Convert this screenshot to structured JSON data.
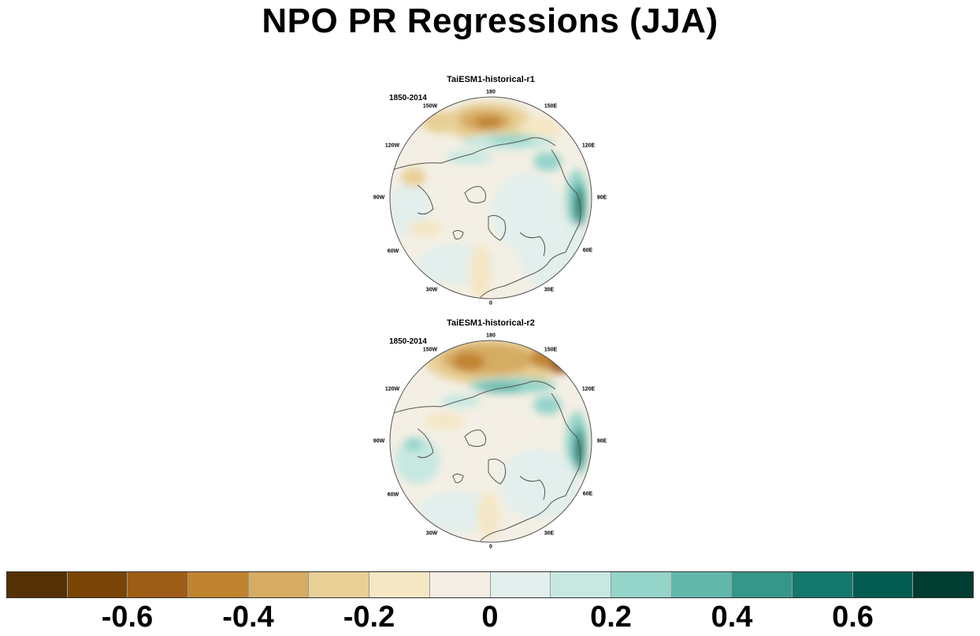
{
  "title": "NPO PR Regressions (JJA)",
  "panels": [
    {
      "title": "TaiESM1-historical-r1",
      "period": "1850-2014"
    },
    {
      "title": "TaiESM1-historical-r2",
      "period": "1850-2014"
    }
  ],
  "longitude_labels": {
    "lon180": "180",
    "lon150e": "150E",
    "lon120e": "120E",
    "lon90e": "90E",
    "lon60e": "60E",
    "lon30e": "30E",
    "lon0": "0",
    "lon30w": "30W",
    "lon60w": "60W",
    "lon90w": "90W",
    "lon120w": "120W",
    "lon150w": "150W"
  },
  "colorbar": {
    "colors": [
      "#543005",
      "#7a4507",
      "#9e5d16",
      "#c08430",
      "#d6ac62",
      "#e8cf95",
      "#f5e7c4",
      "#f3efe4",
      "#e2efec",
      "#c6e8e1",
      "#95d4c9",
      "#63b8ac",
      "#35968a",
      "#15786d",
      "#035c50",
      "#003c30"
    ],
    "tick_labels": [
      "-0.6",
      "-0.4",
      "-0.2",
      "0",
      "0.2",
      "0.4",
      "0.6"
    ],
    "tick_values": [
      -0.6,
      -0.4,
      -0.2,
      0,
      0.2,
      0.4,
      0.6
    ]
  }
}
